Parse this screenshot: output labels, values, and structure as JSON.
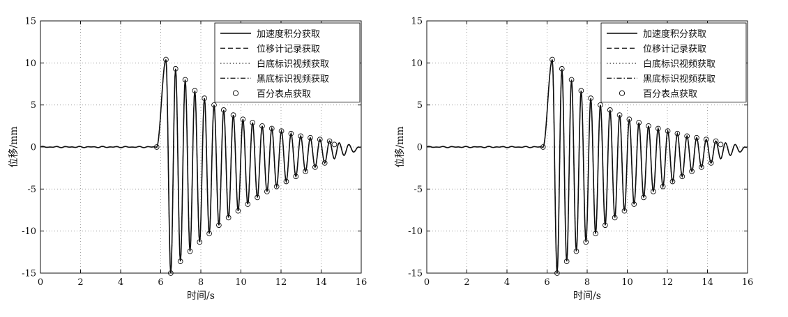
{
  "chart_data": [
    {
      "type": "line",
      "xlabel": "时间/s",
      "ylabel": "位移/mm",
      "xlim": [
        0,
        16
      ],
      "ylim": [
        -15,
        15
      ],
      "xticks": [
        0,
        2,
        4,
        6,
        8,
        10,
        12,
        14,
        16
      ],
      "yticks": [
        -15,
        -10,
        -5,
        0,
        5,
        10,
        15
      ],
      "grid": true,
      "legend_position": "top-right",
      "signal_model": {
        "onset_s": 5.8,
        "period_s": 0.45,
        "peaks_mm": [
          10.4,
          -15.0,
          9.3,
          -13.6,
          8.0,
          -12.4,
          6.7,
          -11.3,
          5.8,
          -10.3,
          5.0,
          -9.3,
          4.4,
          -8.4,
          3.8,
          -7.6,
          3.3,
          -6.8,
          2.9,
          -6.0,
          2.5,
          -5.3,
          2.2,
          -4.7,
          1.9,
          -4.1,
          1.6,
          -3.5,
          1.3,
          -2.9,
          1.1,
          -2.4,
          0.9,
          -1.9,
          0.7,
          -1.4,
          0.5,
          -1.0,
          0.3,
          -0.6
        ]
      },
      "series": [
        {
          "name": "加速度积分获取",
          "style": "solid"
        },
        {
          "name": "位移计记录获取",
          "style": "dashed"
        },
        {
          "name": "白底标识视频获取",
          "style": "dotted"
        },
        {
          "name": "黑底标识视频获取",
          "style": "dashdot"
        },
        {
          "name": "百分表点获取",
          "style": "circle-marker",
          "x": [
            5.8,
            6.26,
            6.5,
            6.74,
            6.98,
            7.22,
            7.46,
            7.7,
            7.94,
            8.18,
            8.42,
            8.66,
            8.9,
            9.14,
            9.38,
            9.62,
            9.86,
            10.1,
            10.34,
            10.58,
            10.82,
            11.06,
            11.3,
            11.54,
            11.78,
            12.02,
            12.26,
            12.5,
            12.74,
            12.98,
            13.22,
            13.46,
            13.7,
            13.94,
            14.18,
            14.42,
            14.66
          ],
          "y": [
            0.0,
            10.4,
            -15.0,
            9.3,
            -13.6,
            8.0,
            -12.4,
            6.7,
            -11.3,
            5.8,
            -10.3,
            5.0,
            -9.3,
            4.4,
            -8.4,
            3.8,
            -7.6,
            3.3,
            -6.8,
            2.9,
            -6.0,
            2.5,
            -5.3,
            2.2,
            -4.7,
            1.9,
            -4.1,
            1.6,
            -3.5,
            1.3,
            -2.9,
            1.1,
            -2.4,
            0.9,
            -1.9,
            0.7,
            0.3
          ]
        }
      ]
    },
    {
      "type": "line",
      "xlabel": "时间/s",
      "ylabel": "位移/mm",
      "xlim": [
        0,
        16
      ],
      "ylim": [
        -15,
        15
      ],
      "xticks": [
        0,
        2,
        4,
        6,
        8,
        10,
        12,
        14,
        16
      ],
      "yticks": [
        -15,
        -10,
        -5,
        0,
        5,
        10,
        15
      ],
      "grid": true,
      "legend_position": "top-right",
      "signal_model": {
        "onset_s": 5.8,
        "period_s": 0.45,
        "peaks_mm": [
          10.4,
          -15.0,
          9.3,
          -13.6,
          8.0,
          -12.4,
          6.7,
          -11.3,
          5.8,
          -10.3,
          5.0,
          -9.3,
          4.4,
          -8.4,
          3.8,
          -7.6,
          3.3,
          -6.8,
          2.9,
          -6.0,
          2.5,
          -5.3,
          2.2,
          -4.7,
          1.9,
          -4.1,
          1.6,
          -3.5,
          1.3,
          -2.9,
          1.1,
          -2.4,
          0.9,
          -1.9,
          0.7,
          -1.4,
          0.5,
          -1.0,
          0.3,
          -0.6
        ]
      },
      "series": [
        {
          "name": "加速度积分获取",
          "style": "solid"
        },
        {
          "name": "位移计记录获取",
          "style": "dashed"
        },
        {
          "name": "白底标识视频获取",
          "style": "dotted"
        },
        {
          "name": "黑底标识视频获取",
          "style": "dashdot"
        },
        {
          "name": "百分表点获取",
          "style": "circle-marker",
          "x": [
            5.8,
            6.26,
            6.5,
            6.74,
            6.98,
            7.22,
            7.46,
            7.7,
            7.94,
            8.18,
            8.42,
            8.66,
            8.9,
            9.14,
            9.38,
            9.62,
            9.86,
            10.1,
            10.34,
            10.58,
            10.82,
            11.06,
            11.3,
            11.54,
            11.78,
            12.02,
            12.26,
            12.5,
            12.74,
            12.98,
            13.22,
            13.46,
            13.7,
            13.94,
            14.18,
            14.42,
            14.66
          ],
          "y": [
            0.0,
            10.4,
            -15.0,
            9.3,
            -13.6,
            8.0,
            -12.4,
            6.7,
            -11.3,
            5.8,
            -10.3,
            5.0,
            -9.3,
            4.4,
            -8.4,
            3.8,
            -7.6,
            3.3,
            -6.8,
            2.9,
            -6.0,
            2.5,
            -5.3,
            2.2,
            -4.7,
            1.9,
            -4.1,
            1.6,
            -3.5,
            1.3,
            -2.9,
            1.1,
            -2.4,
            0.9,
            -1.9,
            0.7,
            0.3
          ]
        }
      ]
    }
  ]
}
